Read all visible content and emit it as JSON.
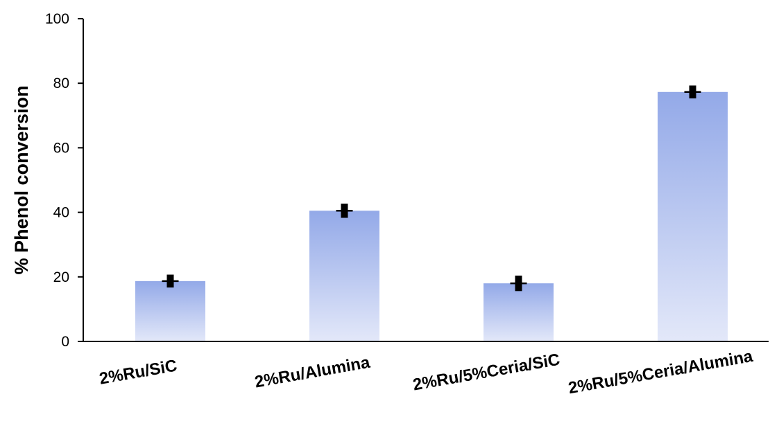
{
  "chart_data": {
    "type": "bar",
    "title": "",
    "xlabel": "",
    "ylabel": "% Phenol conversion",
    "ylim": [
      0,
      100
    ],
    "yticks": [
      0,
      20,
      40,
      60,
      80,
      100
    ],
    "ytick_labels": [
      "0",
      "20",
      "40",
      "60",
      "80",
      "100"
    ],
    "categories": [
      "2%Ru/SiC",
      "2%Ru/Alumina",
      "2%Ru/5%Ceria/SiC",
      "2%Ru/5%Ceria/Alumina"
    ],
    "values": [
      18.7,
      40.5,
      18.0,
      77.3
    ],
    "error": [
      2.0,
      2.2,
      2.4,
      2.0
    ],
    "grid": false,
    "legend": "none",
    "colors": {
      "bar_top": "#93a9e8",
      "bar_bottom": "#e3e8f9",
      "axis": "#000000",
      "error_bar": "#000000"
    }
  }
}
